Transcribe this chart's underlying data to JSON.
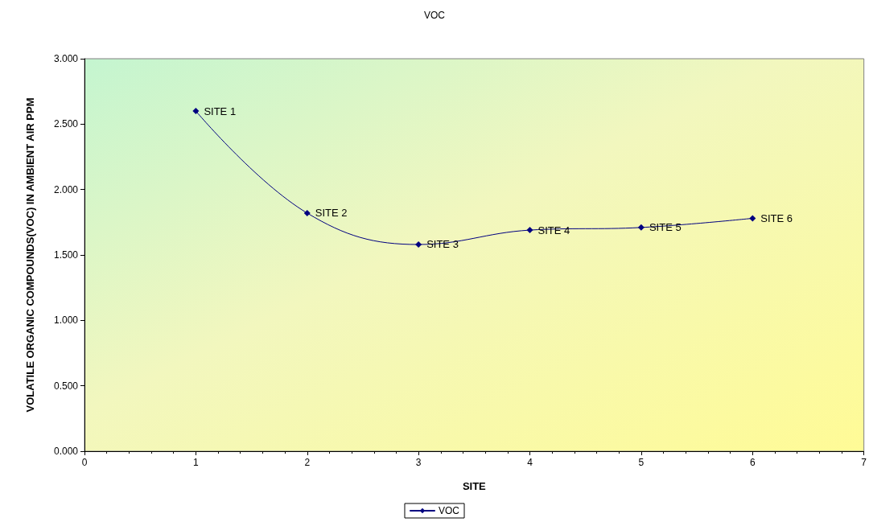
{
  "chart_data": {
    "type": "line",
    "title": "VOC",
    "xlabel": "SITE",
    "ylabel": "VOLATILE ORGANIC COMPOUNDS(VOC) IN AMBIENT AIR PPM",
    "x": [
      1,
      2,
      3,
      4,
      5,
      6
    ],
    "series": [
      {
        "name": "VOC",
        "color": "#000080",
        "values": [
          2.6,
          1.82,
          1.58,
          1.69,
          1.71,
          1.78
        ]
      }
    ],
    "xlim": [
      0,
      7
    ],
    "xticks": [
      0,
      1,
      2,
      3,
      4,
      5,
      6,
      7
    ],
    "ylim": [
      0,
      3
    ],
    "yticks": [
      {
        "value": 0,
        "label": "0.000"
      },
      {
        "value": 0.5,
        "label": "0.500"
      },
      {
        "value": 1,
        "label": "1.000"
      },
      {
        "value": 1.5,
        "label": "1.500"
      },
      {
        "value": 2,
        "label": "2.000"
      },
      {
        "value": 2.5,
        "label": "2.500"
      },
      {
        "value": 3,
        "label": "3.000"
      }
    ],
    "annotations": [
      {
        "text": "SITE 1",
        "x": 1,
        "y": 2.6
      },
      {
        "text": "SITE 2",
        "x": 2,
        "y": 1.82
      },
      {
        "text": "SITE 3",
        "x": 3,
        "y": 1.58
      },
      {
        "text": "SITE 4",
        "x": 4,
        "y": 1.69
      },
      {
        "text": "SITE 5",
        "x": 5,
        "y": 1.71
      },
      {
        "text": "SITE 6",
        "x": 6,
        "y": 1.78
      }
    ],
    "marker": "diamond",
    "line_style": "solid",
    "grid": false,
    "legend": "bottom"
  }
}
